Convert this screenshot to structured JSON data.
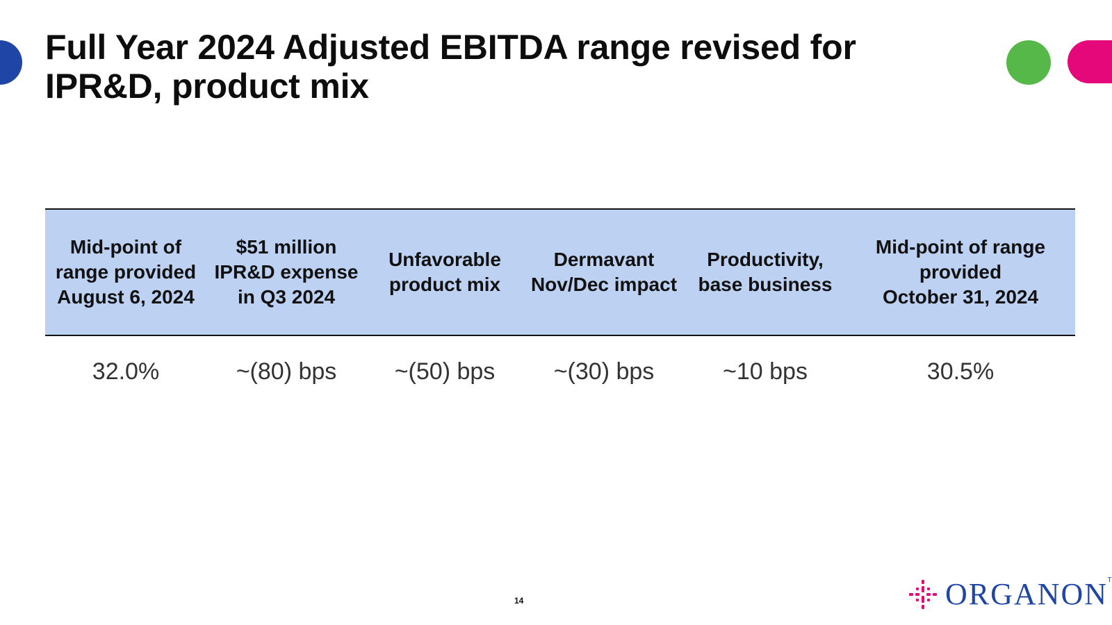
{
  "title": "Full Year 2024 Adjusted EBITDA range revised for IPR&D, product mix",
  "table": {
    "headers": [
      [
        "Mid-point of",
        "range provided",
        "August 6, 2024"
      ],
      [
        "$51 million",
        "IPR&D expense",
        "in Q3 2024"
      ],
      [
        "Unfavorable",
        "product mix"
      ],
      [
        "Dermavant",
        "Nov/Dec impact"
      ],
      [
        "Productivity,",
        "base business"
      ],
      [
        "Mid-point of range",
        "provided",
        "October 31, 2024"
      ]
    ],
    "values": [
      "32.0%",
      "~(80) bps",
      "~(50) bps",
      "~(30) bps",
      "~10 bps",
      "30.5%"
    ]
  },
  "page_number": "14",
  "logo": {
    "text": "ORGANON",
    "tm": "TM",
    "icon": "organon-mark-icon"
  },
  "colors": {
    "blue": "#1f45a6",
    "green": "#56b848",
    "pink": "#e4087a",
    "header_fill": "#bdd1f3"
  }
}
